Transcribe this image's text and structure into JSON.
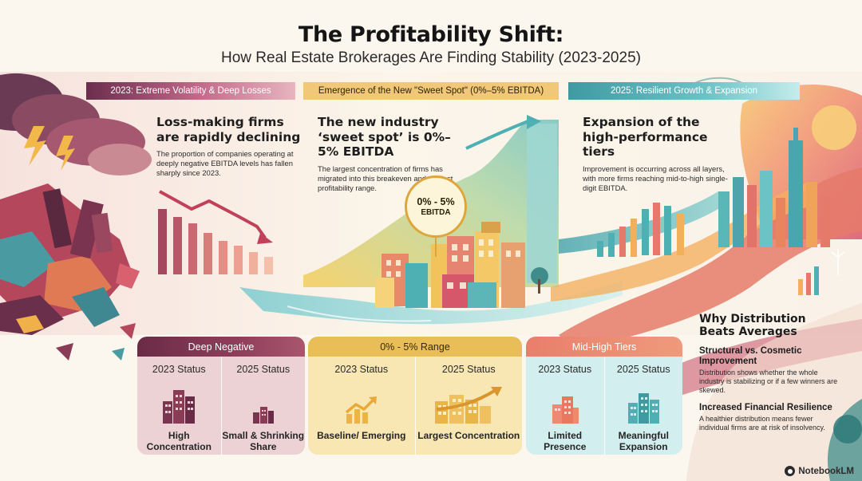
{
  "header": {
    "title": "The Profitability Shift:",
    "subtitle": "How Real Estate Brokerages Are Finding Stability (2023-2025)"
  },
  "banners": [
    {
      "label": "2023: Extreme Volatility & Deep Losses"
    },
    {
      "label": "Emergence of the New \"Sweet Spot\" (0%–5% EBITDA)"
    },
    {
      "label": "2025: Resilient Growth & Expansion"
    }
  ],
  "sections": [
    {
      "heading": "Loss-making firms are rapidly declining",
      "body": "The proportion of companies operating at deeply negative EBITDA levels has fallen sharply since 2023."
    },
    {
      "heading": "The new industry ‘sweet spot’ is 0%–5% EBITDA",
      "body": "The largest concentration of firms has migrated into this breakeven and modest profitability range."
    },
    {
      "heading": "Expansion of the high-performance tiers",
      "body": "Improvement is occurring across all layers, with more firms reaching mid-to-high single-digit EBITDA."
    }
  ],
  "badge": {
    "line1": "0% - 5%",
    "line2": "EBITDA"
  },
  "cards": [
    {
      "title": "Deep Negative",
      "columns": [
        {
          "status": "2023 Status",
          "value": "High Concentration",
          "icon": "tall-buildings-icon"
        },
        {
          "status": "2025 Status",
          "value": "Small & Shrinking Share",
          "icon": "small-buildings-icon"
        }
      ]
    },
    {
      "title": "0% - 5% Range",
      "columns": [
        {
          "status": "2023 Status",
          "value": "Baseline/ Emerging",
          "icon": "growth-arrow-icon"
        },
        {
          "status": "2025 Status",
          "value": "Largest Concentration",
          "icon": "buildings-growth-icon"
        }
      ]
    },
    {
      "title": "Mid-High Tiers",
      "columns": [
        {
          "status": "2023 Status",
          "value": "Limited Presence",
          "icon": "building-icon"
        },
        {
          "status": "2025 Status",
          "value": "Meaningful Expansion",
          "icon": "buildings-icon"
        }
      ]
    }
  ],
  "why": {
    "title": "Why Distribution Beats Averages",
    "points": [
      {
        "heading": "Structural vs. Cosmetic Improvement",
        "body": "Distribution shows whether the whole industry is stabilizing or if a few winners are skewed."
      },
      {
        "heading": "Increased Financial Resilience",
        "body": "A healthier distribution means fewer individual firms are at risk of insolvency."
      }
    ]
  },
  "brand": {
    "label": "NotebookLM",
    "icon": "notebooklm-logo-icon"
  },
  "colors": {
    "deep_negative": "#7a3450",
    "sweet_spot": "#e9bd57",
    "mid_high": "#ef8a72",
    "teal": "#4fb0b4"
  }
}
